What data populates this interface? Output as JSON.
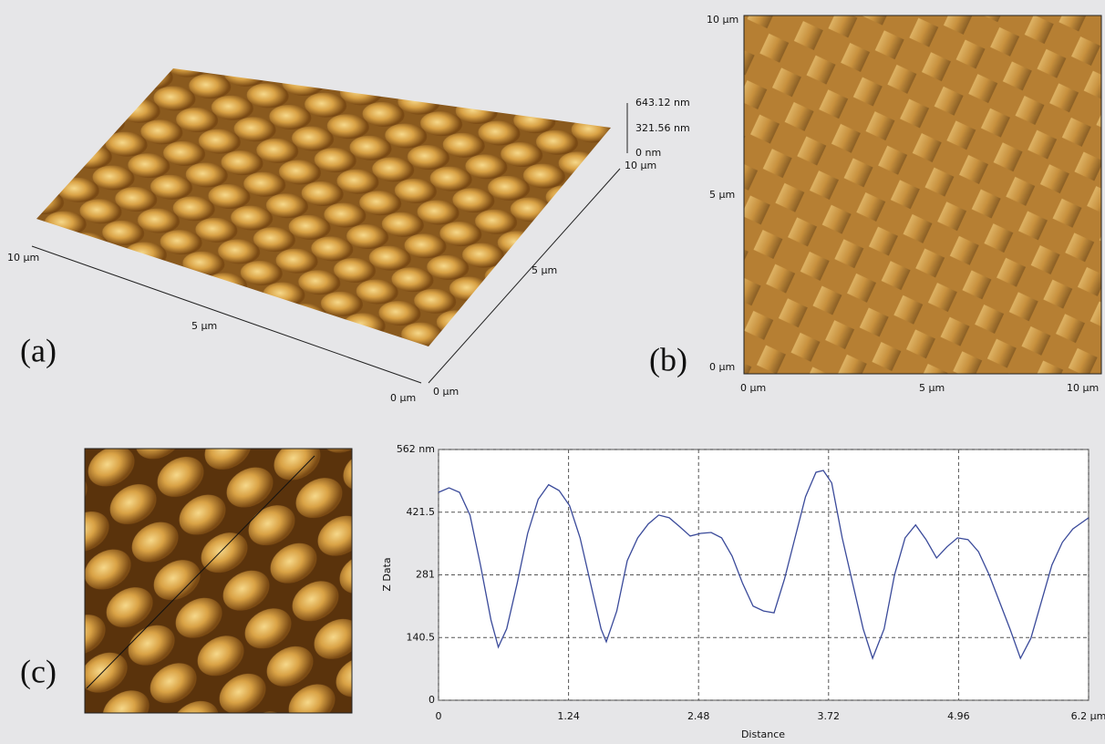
{
  "panels": {
    "a": {
      "label": "(a)",
      "x_labels": [
        "10 µm",
        "5 µm",
        "0 µm"
      ],
      "y_labels": [
        "0 µm",
        "5 µm",
        "10 µm"
      ],
      "z_labels": [
        "643.12 nm",
        "321.56 nm",
        "0 nm"
      ]
    },
    "b": {
      "label": "(b)",
      "y_labels": [
        "10 µm",
        "5 µm",
        "0 µm"
      ],
      "x_labels": [
        "0 µm",
        "5 µm",
        "10 µm"
      ]
    },
    "c": {
      "label": "(c)"
    }
  },
  "chart_data": {
    "type": "line",
    "xlabel": "Distance",
    "ylabel": "Z Data",
    "x": [
      0,
      0.1,
      0.2,
      0.3,
      0.4,
      0.5,
      0.57,
      0.65,
      0.75,
      0.85,
      0.95,
      1.05,
      1.15,
      1.25,
      1.35,
      1.45,
      1.55,
      1.6,
      1.7,
      1.8,
      1.9,
      2.0,
      2.1,
      2.2,
      2.3,
      2.4,
      2.5,
      2.6,
      2.7,
      2.8,
      2.9,
      3.0,
      3.1,
      3.2,
      3.3,
      3.4,
      3.5,
      3.6,
      3.67,
      3.75,
      3.85,
      3.95,
      4.05,
      4.14,
      4.25,
      4.35,
      4.45,
      4.55,
      4.65,
      4.75,
      4.85,
      4.95,
      5.05,
      5.15,
      5.25,
      5.35,
      5.45,
      5.55,
      5.65,
      5.75,
      5.85,
      5.95,
      6.05,
      6.2
    ],
    "series": [
      {
        "color": "#3a4a9a",
        "values": [
          466,
          476,
          466,
          415,
          303,
          180,
          119,
          160,
          262,
          374,
          450,
          483,
          470,
          436,
          364,
          262,
          160,
          131,
          200,
          313,
          364,
          395,
          415,
          409,
          389,
          368,
          374,
          376,
          364,
          323,
          262,
          211,
          200,
          196,
          272,
          364,
          456,
          511,
          515,
          487,
          364,
          262,
          160,
          94,
          160,
          282,
          364,
          393,
          360,
          319,
          344,
          364,
          360,
          333,
          282,
          221,
          160,
          94,
          139,
          221,
          303,
          354,
          384,
          409
        ]
      }
    ],
    "xlim": [
      0,
      6.2
    ],
    "ylim": [
      0,
      562
    ],
    "xticks": [
      0,
      1.24,
      2.48,
      3.72,
      4.96,
      {
        "value": 6.2,
        "label": "6.2 µm"
      }
    ],
    "yticks": [
      0,
      140.5,
      281,
      421.5,
      {
        "value": 562,
        "label": "562 nm"
      }
    ],
    "grid": true
  }
}
